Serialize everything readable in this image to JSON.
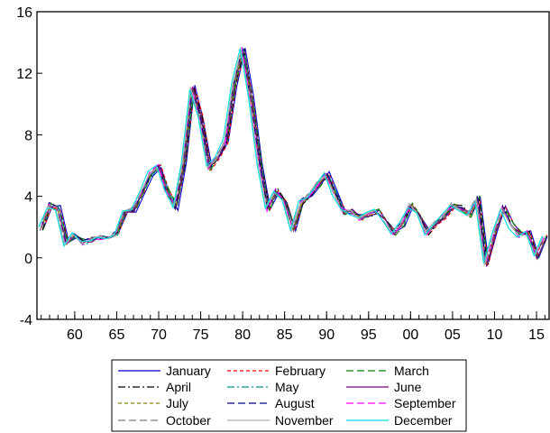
{
  "chart_data": {
    "type": "line",
    "title": "",
    "xlabel": "",
    "ylabel": "",
    "xlim": [
      1955.5,
      2016.5
    ],
    "ylim": [
      -4,
      16
    ],
    "x_ticks": [
      1960,
      1965,
      1970,
      1975,
      1980,
      1985,
      1990,
      1995,
      2000,
      2005,
      2010,
      2015
    ],
    "x_tick_labels": [
      "60",
      "65",
      "70",
      "75",
      "80",
      "85",
      "90",
      "95",
      "00",
      "05",
      "10",
      "15"
    ],
    "y_ticks": [
      -4,
      0,
      4,
      8,
      12,
      16
    ],
    "y_tick_labels": [
      "-4",
      "0",
      "4",
      "8",
      "12",
      "16"
    ],
    "grid": false,
    "legend_position": "bottom",
    "x": [
      1956,
      1957,
      1958,
      1959,
      1960,
      1961,
      1962,
      1963,
      1964,
      1965,
      1966,
      1967,
      1968,
      1969,
      1970,
      1971,
      1972,
      1973,
      1974,
      1975,
      1976,
      1977,
      1978,
      1979,
      1980,
      1981,
      1982,
      1983,
      1984,
      1985,
      1986,
      1987,
      1988,
      1989,
      1990,
      1991,
      1992,
      1993,
      1994,
      1995,
      1996,
      1997,
      1998,
      1999,
      2000,
      2001,
      2002,
      2003,
      2004,
      2005,
      2006,
      2007,
      2008,
      2009,
      2010,
      2011,
      2012,
      2013,
      2014,
      2015,
      2016
    ],
    "base_values": [
      1.9,
      3.4,
      3.2,
      0.9,
      1.5,
      1.0,
      1.2,
      1.3,
      1.3,
      1.6,
      2.9,
      3.1,
      4.2,
      5.4,
      5.9,
      4.3,
      3.3,
      6.2,
      11.0,
      9.1,
      5.8,
      6.5,
      7.6,
      11.3,
      13.5,
      10.3,
      6.2,
      3.2,
      4.3,
      3.6,
      1.9,
      3.6,
      4.1,
      4.8,
      5.4,
      4.2,
      3.0,
      3.0,
      2.6,
      2.8,
      3.0,
      2.3,
      1.6,
      2.2,
      3.4,
      2.8,
      1.6,
      2.3,
      2.7,
      3.4,
      3.2,
      2.8,
      3.8,
      -0.4,
      1.6,
      3.2,
      2.1,
      1.5,
      1.6,
      0.1,
      1.3
    ],
    "series": [
      {
        "name": "January",
        "color": "#0000cc",
        "dash": "solid",
        "offset": 0.0,
        "shift": 0.3,
        "noise": 0.45,
        "seed": 1
      },
      {
        "name": "February",
        "color": "#ff0000",
        "dash": "short",
        "offset": 0.05,
        "shift": 0.25,
        "noise": 0.4,
        "seed": 2
      },
      {
        "name": "March",
        "color": "#008000",
        "dash": "long",
        "offset": 0.0,
        "shift": 0.2,
        "noise": 0.4,
        "seed": 3
      },
      {
        "name": "April",
        "color": "#000000",
        "dash": "dashdot",
        "offset": 0.05,
        "shift": 0.15,
        "noise": 0.35,
        "seed": 4
      },
      {
        "name": "May",
        "color": "#009999",
        "dash": "dashdot",
        "offset": 0.0,
        "shift": 0.1,
        "noise": 0.35,
        "seed": 5
      },
      {
        "name": "June",
        "color": "#800080",
        "dash": "solid",
        "offset": 0.0,
        "shift": 0.05,
        "noise": 0.35,
        "seed": 6
      },
      {
        "name": "July",
        "color": "#808000",
        "dash": "short",
        "offset": 0.0,
        "shift": 0.0,
        "noise": 0.35,
        "seed": 7
      },
      {
        "name": "August",
        "color": "#000080",
        "dash": "long",
        "offset": 0.05,
        "shift": -0.05,
        "noise": 0.35,
        "seed": 8
      },
      {
        "name": "September",
        "color": "#ff00ff",
        "dash": "long",
        "offset": 0.0,
        "shift": -0.1,
        "noise": 0.4,
        "seed": 9
      },
      {
        "name": "October",
        "color": "#808080",
        "dash": "long",
        "offset": 0.0,
        "shift": -0.15,
        "noise": 0.35,
        "seed": 10
      },
      {
        "name": "November",
        "color": "#b0b0b0",
        "dash": "solid",
        "offset": 0.0,
        "shift": -0.2,
        "noise": 0.35,
        "seed": 11
      },
      {
        "name": "December",
        "color": "#00e0e0",
        "dash": "solid",
        "offset": 0.0,
        "shift": -0.3,
        "noise": 0.4,
        "seed": 12
      }
    ]
  }
}
